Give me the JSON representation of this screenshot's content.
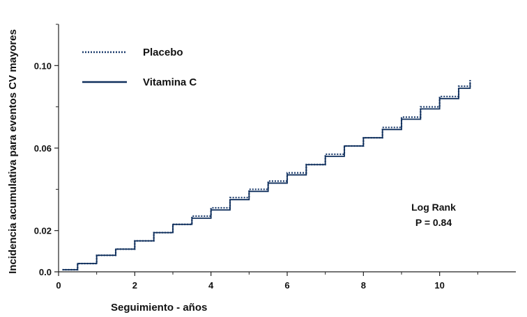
{
  "chart_data": {
    "type": "line",
    "title": "",
    "xlabel": "Seguimiento - años",
    "ylabel": "Incidencia acumulativa para eventos CV mayores",
    "xlim": [
      0,
      12
    ],
    "ylim": [
      0,
      0.12
    ],
    "x_ticks": [
      0,
      2,
      4,
      6,
      8,
      10
    ],
    "x_tick_labels": [
      "0",
      "2",
      "4",
      "6",
      "8",
      "10"
    ],
    "y_ticks": [
      0,
      0.02,
      0.06,
      0.1
    ],
    "y_tick_labels": [
      "0.0",
      "0.02",
      "0.06",
      "0.10"
    ],
    "grid": false,
    "legend_position": "top-left",
    "series": [
      {
        "name": "Placebo",
        "style": "dotted",
        "color": "#1a3a6b",
        "x": [
          0.1,
          0.5,
          1.0,
          1.5,
          2.0,
          2.5,
          3.0,
          3.5,
          4.0,
          4.5,
          5.0,
          5.5,
          6.0,
          6.5,
          7.0,
          7.5,
          8.0,
          8.5,
          9.0,
          9.5,
          10.0,
          10.5,
          10.8
        ],
        "y": [
          0.001,
          0.004,
          0.008,
          0.011,
          0.015,
          0.019,
          0.023,
          0.027,
          0.031,
          0.036,
          0.04,
          0.044,
          0.048,
          0.052,
          0.057,
          0.061,
          0.065,
          0.07,
          0.075,
          0.08,
          0.085,
          0.09,
          0.093
        ]
      },
      {
        "name": "Vitamina C",
        "style": "solid",
        "color": "#0f2f5c",
        "x": [
          0.1,
          0.5,
          1.0,
          1.5,
          2.0,
          2.5,
          3.0,
          3.5,
          4.0,
          4.5,
          5.0,
          5.5,
          6.0,
          6.5,
          7.0,
          7.5,
          8.0,
          8.5,
          9.0,
          9.5,
          10.0,
          10.5,
          10.8
        ],
        "y": [
          0.001,
          0.004,
          0.008,
          0.011,
          0.015,
          0.019,
          0.023,
          0.026,
          0.03,
          0.035,
          0.039,
          0.043,
          0.047,
          0.052,
          0.056,
          0.061,
          0.065,
          0.069,
          0.074,
          0.079,
          0.084,
          0.089,
          0.092
        ]
      }
    ],
    "annotations": [
      "Log Rank",
      "P = 0.84"
    ]
  }
}
